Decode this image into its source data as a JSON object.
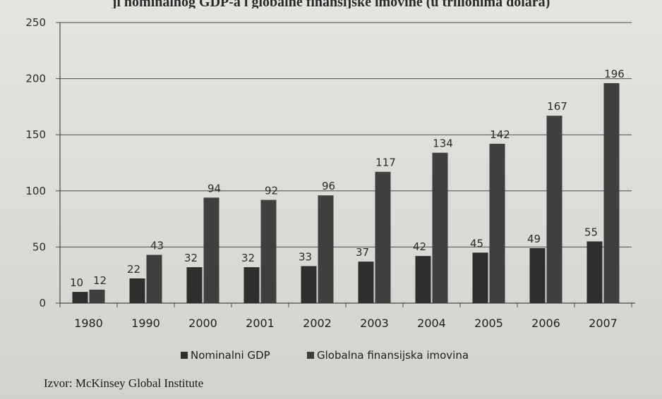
{
  "header": {
    "title_fragment": "ji nominalnog GDP-a i globalne finansijske imovine (u trilionima dolara)"
  },
  "source": "Izvor: McKinsey Global Institute",
  "colors": {
    "gdp": "#2e2e2e",
    "assets": "#3f3f3f",
    "grid": "#4a4a4a",
    "text": "#2b2b2b"
  },
  "chart_data": {
    "type": "bar",
    "title": "",
    "xlabel": "",
    "ylabel": "",
    "ylim": [
      0,
      250
    ],
    "yticks": [
      0,
      50,
      100,
      150,
      200,
      250
    ],
    "grid": true,
    "legend": "bottom",
    "categories": [
      "1980",
      "1990",
      "2000",
      "2001",
      "2002",
      "2003",
      "2004",
      "2005",
      "2006",
      "2007"
    ],
    "series": [
      {
        "name": "Nominalni GDP",
        "values": [
          10,
          22,
          32,
          32,
          33,
          37,
          42,
          45,
          49,
          55
        ]
      },
      {
        "name": "Globalna finansijska imovina",
        "values": [
          12,
          43,
          94,
          92,
          96,
          117,
          134,
          142,
          167,
          196
        ]
      }
    ]
  }
}
